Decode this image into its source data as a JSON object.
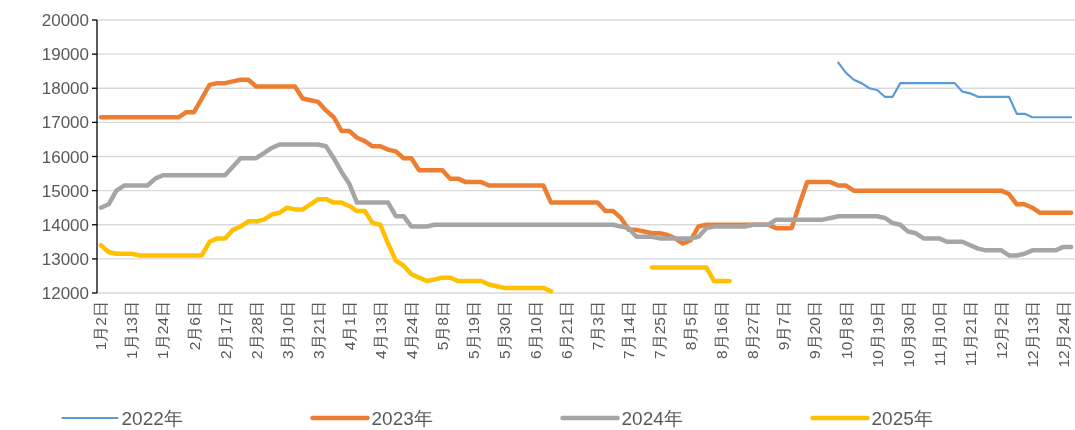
{
  "chart_data": {
    "type": "line",
    "categories": [
      "1月2日",
      null,
      null,
      null,
      "1月13日",
      null,
      null,
      null,
      "1月24日",
      null,
      null,
      null,
      "2月6日",
      null,
      null,
      null,
      "2月17日",
      null,
      null,
      null,
      "2月28日",
      null,
      null,
      null,
      "3月10日",
      null,
      null,
      null,
      "3月21日",
      null,
      null,
      null,
      "4月1日",
      null,
      null,
      null,
      "4月13日",
      null,
      null,
      null,
      "4月24日",
      null,
      null,
      null,
      "5月8日",
      null,
      null,
      null,
      "5月19日",
      null,
      null,
      null,
      "5月30日",
      null,
      null,
      null,
      "6月10日",
      null,
      null,
      null,
      "6月21日",
      null,
      null,
      null,
      "7月3日",
      null,
      null,
      null,
      "7月14日",
      null,
      null,
      null,
      "7月25日",
      null,
      null,
      null,
      "8月5日",
      null,
      null,
      null,
      "8月16日",
      null,
      null,
      null,
      "8月27日",
      null,
      null,
      null,
      "9月7日",
      null,
      null,
      null,
      "9月20日",
      null,
      null,
      null,
      "10月8日",
      null,
      null,
      null,
      "10月19日",
      null,
      null,
      null,
      "10月30日",
      null,
      null,
      null,
      "11月10日",
      null,
      null,
      null,
      "11月21日",
      null,
      null,
      null,
      "12月2日",
      null,
      null,
      null,
      "12月13日",
      null,
      null,
      null,
      "12月24日",
      null
    ],
    "series": [
      {
        "name": "2022年",
        "color": "#5b9bd5",
        "values": [
          null,
          null,
          null,
          null,
          null,
          null,
          null,
          null,
          null,
          null,
          null,
          null,
          null,
          null,
          null,
          null,
          null,
          null,
          null,
          null,
          null,
          null,
          null,
          null,
          null,
          null,
          null,
          null,
          null,
          null,
          null,
          null,
          null,
          null,
          null,
          null,
          null,
          null,
          null,
          null,
          null,
          null,
          null,
          null,
          null,
          null,
          null,
          null,
          null,
          null,
          null,
          null,
          null,
          null,
          null,
          null,
          null,
          null,
          null,
          null,
          null,
          null,
          null,
          null,
          null,
          null,
          null,
          null,
          null,
          null,
          null,
          null,
          null,
          null,
          null,
          null,
          null,
          null,
          null,
          null,
          null,
          null,
          null,
          null,
          null,
          null,
          null,
          null,
          null,
          null,
          null,
          null,
          null,
          null,
          null,
          18750,
          18450,
          18250,
          18150,
          18000,
          17950,
          17750,
          17750,
          18150,
          18150,
          18150,
          18150,
          18150,
          18150,
          18150,
          18150,
          17900,
          17850,
          17750,
          17750,
          17750,
          17750,
          17750,
          17250,
          17250,
          17150,
          17150,
          17150,
          17150,
          17150,
          17150
        ]
      },
      {
        "name": "2023年",
        "color": "#ed7d31",
        "values": [
          17150,
          17150,
          17150,
          17150,
          17150,
          17150,
          17150,
          17150,
          17150,
          17150,
          17150,
          17300,
          17300,
          17700,
          18100,
          18150,
          18150,
          18200,
          18250,
          18250,
          18050,
          18050,
          18050,
          18050,
          18050,
          18050,
          17700,
          17650,
          17600,
          17350,
          17150,
          16750,
          16750,
          16550,
          16450,
          16300,
          16300,
          16200,
          16150,
          15950,
          15950,
          15600,
          15600,
          15600,
          15600,
          15350,
          15350,
          15250,
          15250,
          15250,
          15150,
          15150,
          15150,
          15150,
          15150,
          15150,
          15150,
          15150,
          14650,
          14650,
          14650,
          14650,
          14650,
          14650,
          14650,
          14400,
          14400,
          14200,
          13850,
          13850,
          13800,
          13750,
          13750,
          13700,
          13600,
          13450,
          13550,
          13950,
          14000,
          14000,
          14000,
          14000,
          14000,
          14000,
          14000,
          14000,
          14000,
          13900,
          13900,
          13900,
          14600,
          15250,
          15250,
          15250,
          15250,
          15150,
          15150,
          15000,
          15000,
          15000,
          15000,
          15000,
          15000,
          15000,
          15000,
          15000,
          15000,
          15000,
          15000,
          15000,
          15000,
          15000,
          15000,
          15000,
          15000,
          15000,
          15000,
          14900,
          14600,
          14600,
          14500,
          14350,
          14350,
          14350,
          14350,
          14350
        ]
      },
      {
        "name": "2024年",
        "color": "#a5a5a5",
        "values": [
          14500,
          14600,
          15000,
          15150,
          15150,
          15150,
          15150,
          15350,
          15450,
          15450,
          15450,
          15450,
          15450,
          15450,
          15450,
          15450,
          15450,
          15700,
          15950,
          15950,
          15950,
          16100,
          16250,
          16350,
          16350,
          16350,
          16350,
          16350,
          16350,
          16300,
          15950,
          15550,
          15200,
          14650,
          14650,
          14650,
          14650,
          14650,
          14250,
          14250,
          13950,
          13950,
          13950,
          14000,
          14000,
          14000,
          14000,
          14000,
          14000,
          14000,
          14000,
          14000,
          14000,
          14000,
          14000,
          14000,
          14000,
          14000,
          14000,
          14000,
          14000,
          14000,
          14000,
          14000,
          14000,
          14000,
          14000,
          13950,
          13900,
          13650,
          13650,
          13650,
          13600,
          13600,
          13600,
          13600,
          13600,
          13650,
          13900,
          13950,
          13950,
          13950,
          13950,
          13950,
          14000,
          14000,
          14000,
          14150,
          14150,
          14150,
          14150,
          14150,
          14150,
          14150,
          14200,
          14250,
          14250,
          14250,
          14250,
          14250,
          14250,
          14200,
          14050,
          14000,
          13800,
          13750,
          13600,
          13600,
          13600,
          13500,
          13500,
          13500,
          13400,
          13300,
          13250,
          13250,
          13250,
          13100,
          13100,
          13150,
          13250,
          13250,
          13250,
          13250,
          13350,
          13350
        ]
      },
      {
        "name": "2025年",
        "color": "#ffc000",
        "values": [
          13400,
          13200,
          13150,
          13150,
          13150,
          13100,
          13100,
          13100,
          13100,
          13100,
          13100,
          13100,
          13100,
          13100,
          13500,
          13600,
          13600,
          13850,
          13950,
          14100,
          14100,
          14150,
          14300,
          14350,
          14500,
          14450,
          14450,
          14600,
          14750,
          14750,
          14650,
          14650,
          14550,
          14400,
          14400,
          14050,
          14000,
          13450,
          12950,
          12800,
          12550,
          12450,
          12350,
          12400,
          12450,
          12450,
          12350,
          12350,
          12350,
          12350,
          12250,
          12200,
          12150,
          12150,
          12150,
          12150,
          12150,
          12150,
          12050,
          null,
          null,
          null,
          null,
          null,
          null,
          null,
          null,
          null,
          null,
          null,
          null,
          12750,
          12750,
          12750,
          12750,
          12750,
          12750,
          12750,
          12750,
          12350,
          12350,
          12350,
          null,
          null,
          null,
          null,
          null,
          null,
          null,
          null,
          null,
          null,
          null,
          null,
          null,
          null,
          null,
          null,
          null,
          null,
          null,
          null,
          null,
          null,
          null,
          null,
          null,
          null,
          null,
          null,
          null,
          null,
          null,
          null,
          null,
          null,
          null,
          null,
          null,
          null,
          null,
          null,
          null,
          null,
          null,
          null
        ]
      }
    ],
    "ylim": [
      12000,
      20000
    ],
    "yticks": [
      12000,
      13000,
      14000,
      15000,
      16000,
      17000,
      18000,
      19000,
      20000
    ],
    "grid": "y",
    "legend": "bottom"
  }
}
